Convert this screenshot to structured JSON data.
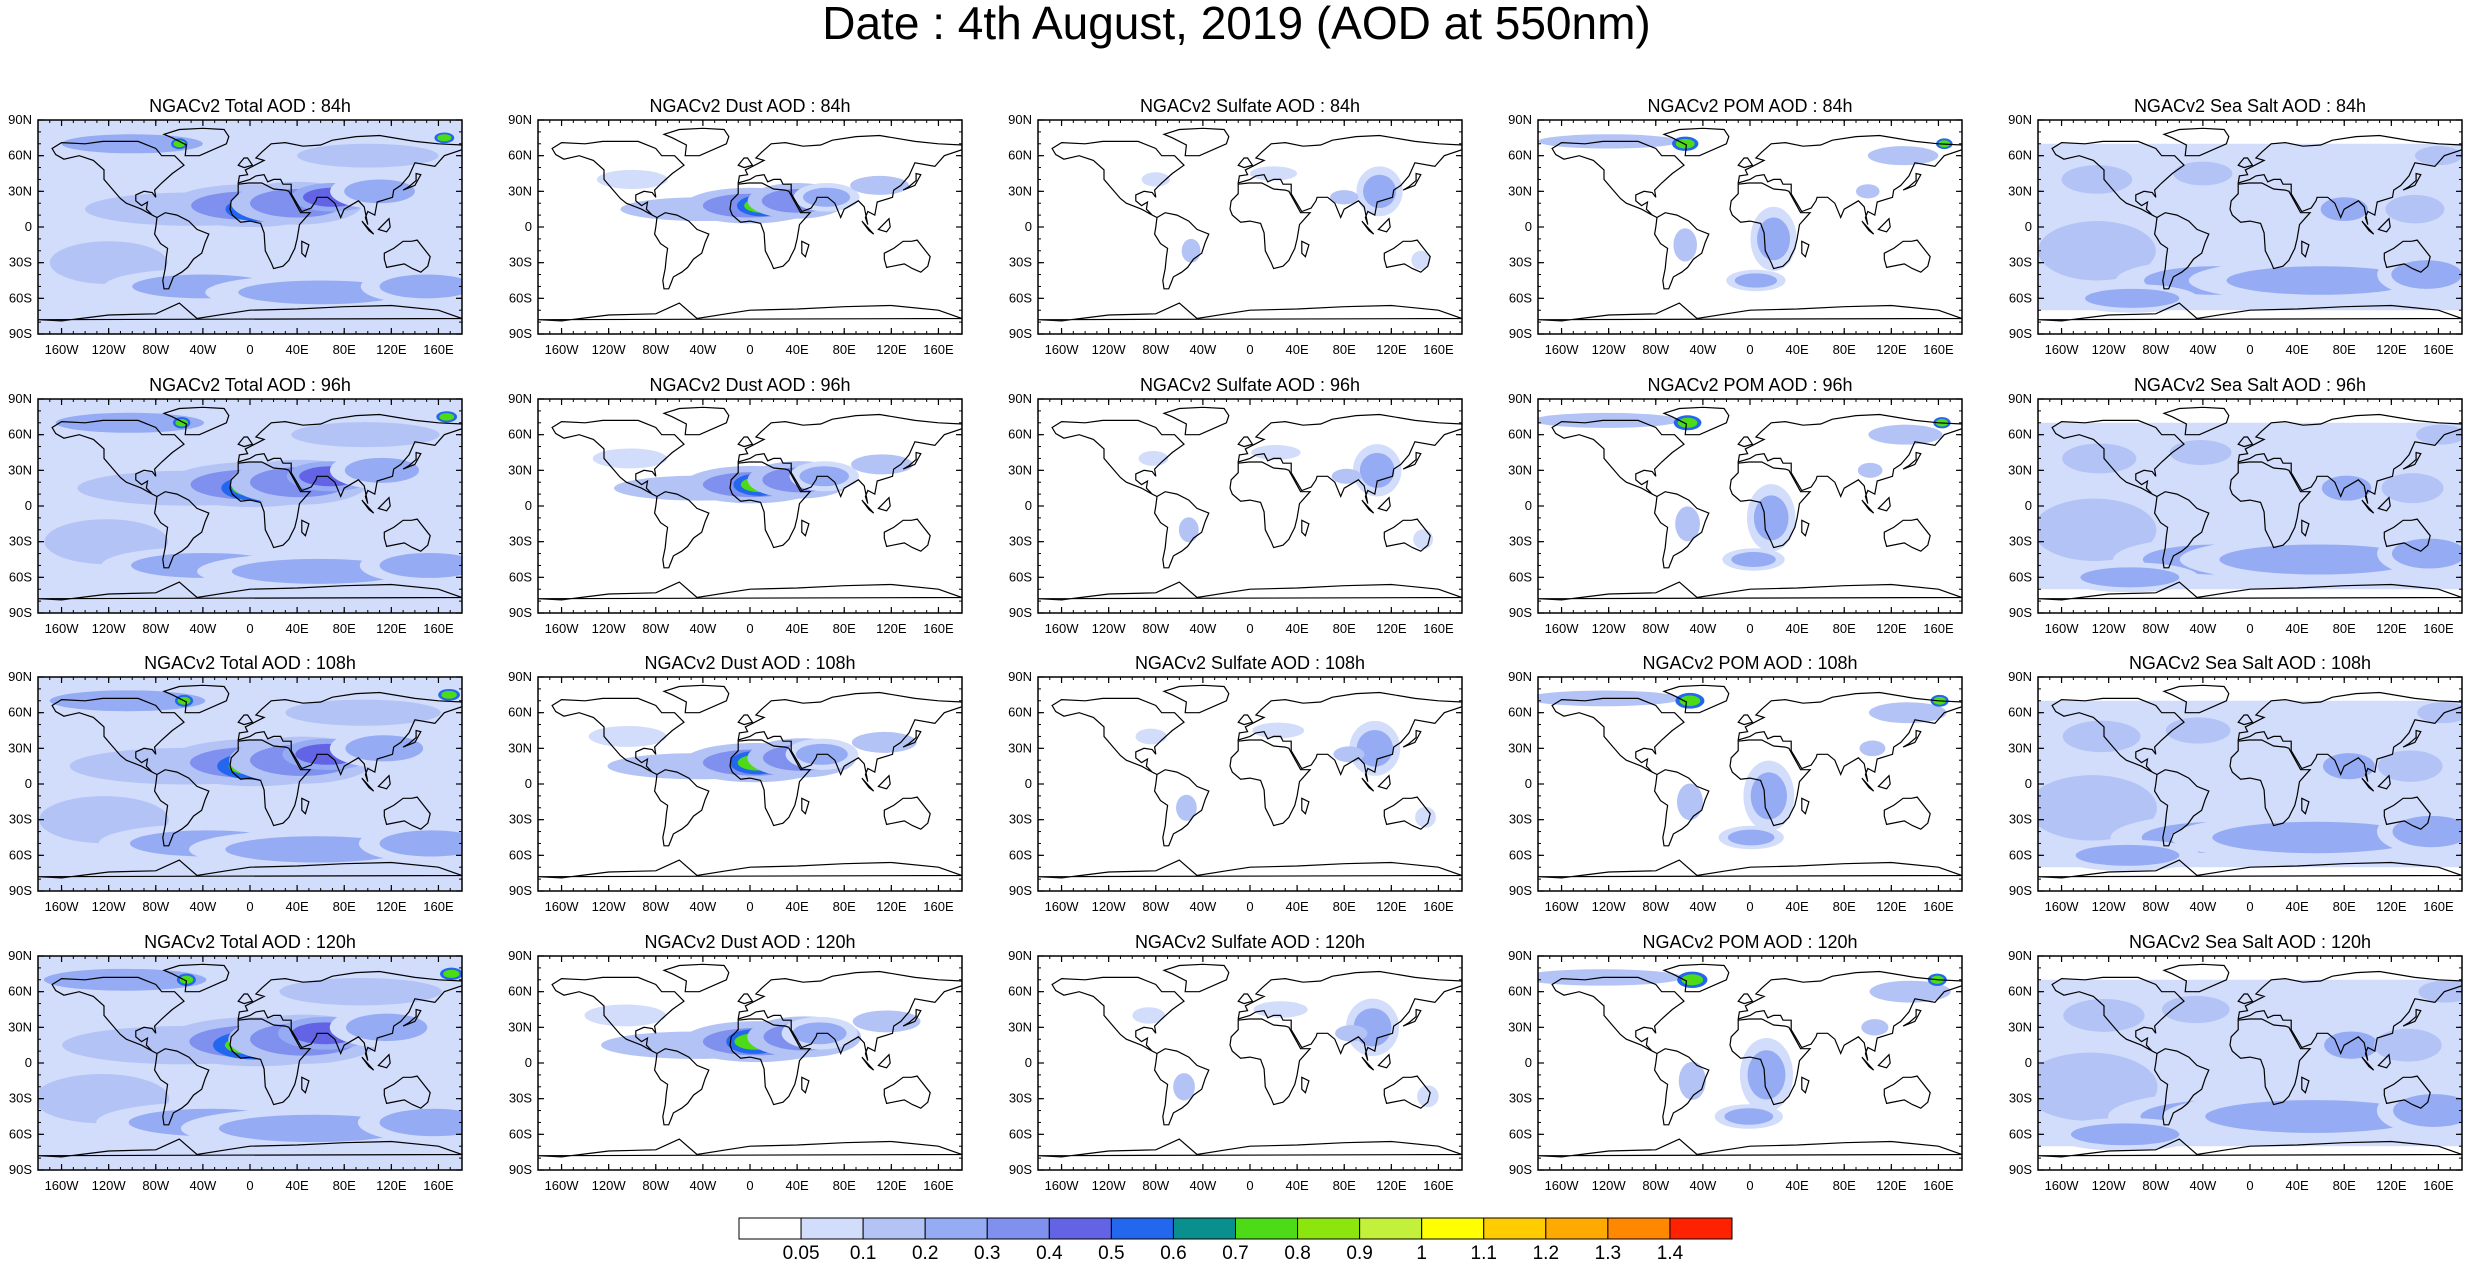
{
  "title": "Date : 4th August, 2019 (AOD at 550nm)",
  "lat_labels": [
    "90N",
    "60N",
    "30N",
    "0",
    "30S",
    "60S",
    "90S"
  ],
  "lon_labels": [
    "160W",
    "120W",
    "80W",
    "40W",
    "0",
    "40E",
    "80E",
    "120E",
    "160E"
  ],
  "panels": [
    {
      "title": "NGACv2 Total AOD : 84h",
      "species": "total",
      "hour": 84
    },
    {
      "title": "NGACv2 Dust AOD : 84h",
      "species": "dust",
      "hour": 84
    },
    {
      "title": "NGACv2 Sulfate AOD : 84h",
      "species": "sulfate",
      "hour": 84
    },
    {
      "title": "NGACv2 POM AOD : 84h",
      "species": "pom",
      "hour": 84
    },
    {
      "title": "NGACv2 Sea Salt AOD : 84h",
      "species": "seasalt",
      "hour": 84
    },
    {
      "title": "NGACv2 Total AOD : 96h",
      "species": "total",
      "hour": 96
    },
    {
      "title": "NGACv2 Dust AOD : 96h",
      "species": "dust",
      "hour": 96
    },
    {
      "title": "NGACv2 Sulfate AOD : 96h",
      "species": "sulfate",
      "hour": 96
    },
    {
      "title": "NGACv2 POM AOD : 96h",
      "species": "pom",
      "hour": 96
    },
    {
      "title": "NGACv2 Sea Salt AOD : 96h",
      "species": "seasalt",
      "hour": 96
    },
    {
      "title": "NGACv2 Total AOD : 108h",
      "species": "total",
      "hour": 108
    },
    {
      "title": "NGACv2 Dust AOD : 108h",
      "species": "dust",
      "hour": 108
    },
    {
      "title": "NGACv2 Sulfate AOD : 108h",
      "species": "sulfate",
      "hour": 108
    },
    {
      "title": "NGACv2 POM AOD : 108h",
      "species": "pom",
      "hour": 108
    },
    {
      "title": "NGACv2 Sea Salt AOD : 108h",
      "species": "seasalt",
      "hour": 108
    },
    {
      "title": "NGACv2 Total AOD : 120h",
      "species": "total",
      "hour": 120
    },
    {
      "title": "NGACv2 Dust AOD : 120h",
      "species": "dust",
      "hour": 120
    },
    {
      "title": "NGACv2 Sulfate AOD : 120h",
      "species": "sulfate",
      "hour": 120
    },
    {
      "title": "NGACv2 POM AOD : 120h",
      "species": "pom",
      "hour": 120
    },
    {
      "title": "NGACv2 Sea Salt  AOD : 120h",
      "species": "seasalt",
      "hour": 120
    }
  ],
  "colorbar": {
    "labels": [
      "0.05",
      "0.1",
      "0.2",
      "0.3",
      "0.4",
      "0.5",
      "0.6",
      "0.7",
      "0.8",
      "0.9",
      "1",
      "1.1",
      "1.2",
      "1.3",
      "1.4"
    ],
    "colors": [
      "#ffffff",
      "#d2dcfb",
      "#b3c3f6",
      "#95abf3",
      "#7f90ee",
      "#6363e6",
      "#2267ee",
      "#0a8f8f",
      "#4cdb16",
      "#8ce50d",
      "#c3f03a",
      "#ffff00",
      "#ffcc00",
      "#ffaa00",
      "#ff8800",
      "#ff2200"
    ]
  }
}
